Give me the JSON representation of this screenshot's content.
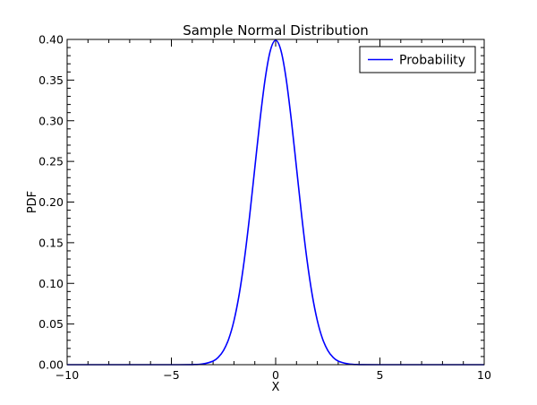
{
  "chart_data": {
    "type": "line",
    "title": "Sample Normal Distribution",
    "xlabel": "X",
    "ylabel": "PDF",
    "xlim": [
      -10,
      10
    ],
    "ylim": [
      0,
      0.4
    ],
    "x_ticks": [
      -10,
      -5,
      0,
      5,
      10
    ],
    "x_tick_labels": [
      "−10",
      "−5",
      "0",
      "5",
      "10"
    ],
    "y_ticks": [
      0.0,
      0.05,
      0.1,
      0.15,
      0.2,
      0.25,
      0.3,
      0.35,
      0.4
    ],
    "y_tick_labels": [
      "0.00",
      "0.05",
      "0.10",
      "0.15",
      "0.20",
      "0.25",
      "0.30",
      "0.35",
      "0.40"
    ],
    "legend": {
      "position": "top-right"
    },
    "grid": false,
    "series": [
      {
        "name": "Probability",
        "color": "#0000ff",
        "x": [
          -10,
          -5,
          -4,
          -3.5,
          -3,
          -2.75,
          -2.5,
          -2.25,
          -2,
          -1.75,
          -1.5,
          -1.25,
          -1,
          -0.75,
          -0.5,
          -0.25,
          0,
          0.25,
          0.5,
          0.75,
          1,
          1.25,
          1.5,
          1.75,
          2,
          2.25,
          2.5,
          2.75,
          3,
          3.5,
          4,
          5,
          10
        ],
        "y": [
          0.0,
          0.0,
          0.0001,
          0.0009,
          0.0044,
          0.0091,
          0.0175,
          0.0317,
          0.054,
          0.0863,
          0.1295,
          0.1826,
          0.242,
          0.3011,
          0.3521,
          0.3867,
          0.3989,
          0.3867,
          0.3521,
          0.3011,
          0.242,
          0.1826,
          0.1295,
          0.0863,
          0.054,
          0.0317,
          0.0175,
          0.0091,
          0.0044,
          0.0009,
          0.0001,
          0.0,
          0.0
        ]
      }
    ]
  }
}
